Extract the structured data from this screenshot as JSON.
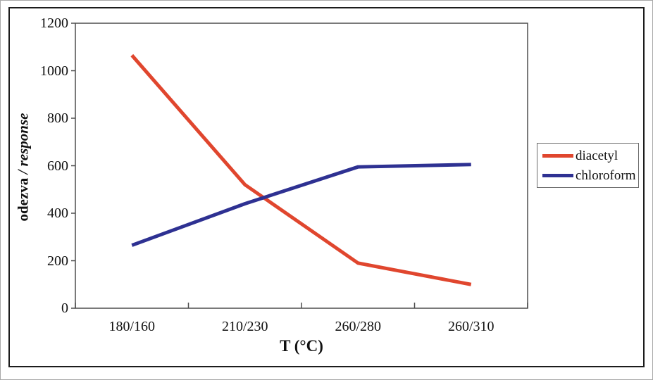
{
  "chart_data": {
    "type": "line",
    "categories": [
      "180/160",
      "210/230",
      "260/280",
      "260/310"
    ],
    "series": [
      {
        "name": "diacetyl",
        "color": "#E0462E",
        "values": [
          1065,
          520,
          190,
          100
        ]
      },
      {
        "name": "chloroform",
        "color": "#2E3192",
        "values": [
          265,
          440,
          595,
          605
        ]
      }
    ],
    "title": "",
    "xlabel": "T (°C)",
    "ylabel": "odezva / response",
    "ylabel_parts": {
      "normal": "odezva ",
      "italic": "/ response"
    },
    "ylim": [
      0,
      1200
    ],
    "ytick_step": 200,
    "yticks": [
      0,
      200,
      400,
      600,
      800,
      1000,
      1200
    ],
    "grid": false,
    "legend_position": "right",
    "axis_color": "#4d4d4d",
    "frame_color": "#1c1c1c",
    "line_width": 5
  }
}
